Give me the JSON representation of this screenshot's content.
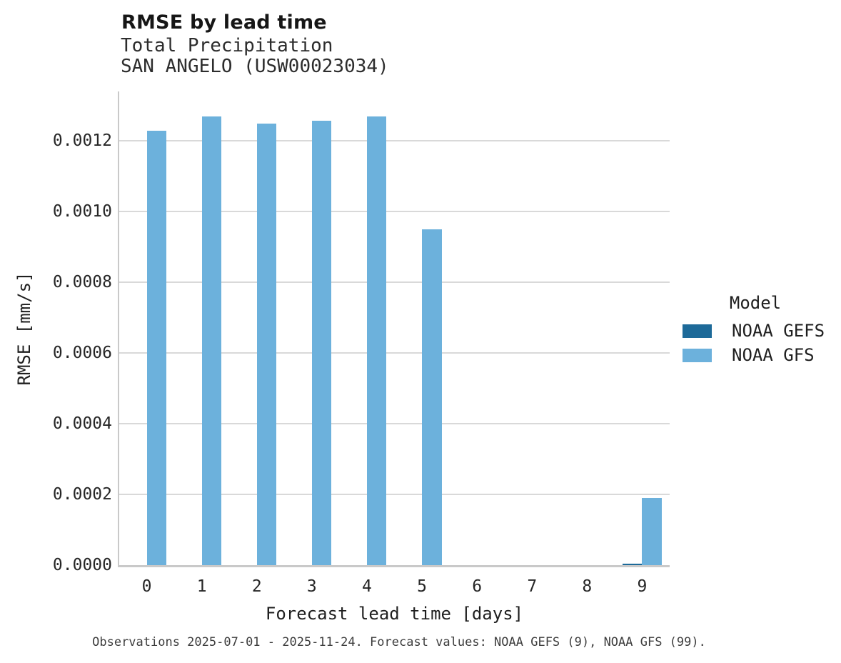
{
  "header": {
    "title": "RMSE by lead time",
    "subtitle": "Total Precipitation\nSAN ANGELO (USW00023034)"
  },
  "colors": {
    "noaa_gefs": "#1d6a99",
    "noaa_gfs": "#6cb1dc",
    "gridline": "#d9d9d9",
    "spine": "#c9c9c9"
  },
  "chart_data": {
    "type": "bar",
    "title": "RMSE by lead time",
    "subtitle": [
      "Total Precipitation",
      "SAN ANGELO (USW00023034)"
    ],
    "categories": [
      "0",
      "1",
      "2",
      "3",
      "4",
      "5",
      "6",
      "7",
      "8",
      "9"
    ],
    "series": [
      {
        "name": "NOAA GEFS",
        "color": "#1d6a99",
        "values": [
          0,
          0,
          0,
          0,
          0,
          0,
          0,
          0,
          0,
          5e-06
        ]
      },
      {
        "name": "NOAA GFS",
        "color": "#6cb1dc",
        "values": [
          0.001228,
          0.001269,
          0.001248,
          0.001257,
          0.001269,
          0.000949,
          0,
          0,
          0,
          0.00019
        ]
      }
    ],
    "xlabel": "Forecast lead time [days]",
    "ylabel": "RMSE [mm/s]",
    "ylim": [
      0,
      0.001339
    ],
    "yticks": [
      0.0,
      0.0002,
      0.0004,
      0.0006,
      0.0008,
      0.001,
      0.0012
    ],
    "ytick_labels": [
      "0.0000",
      "0.0002",
      "0.0004",
      "0.0006",
      "0.0008",
      "0.0010",
      "0.0012"
    ],
    "grid": "horizontal",
    "legend": {
      "title": "Model",
      "position": "right"
    }
  },
  "legend": {
    "title": "Model"
  },
  "caption": "Observations 2025-07-01 - 2025-11-24. Forecast values: NOAA GEFS (9), NOAA GFS (99)."
}
